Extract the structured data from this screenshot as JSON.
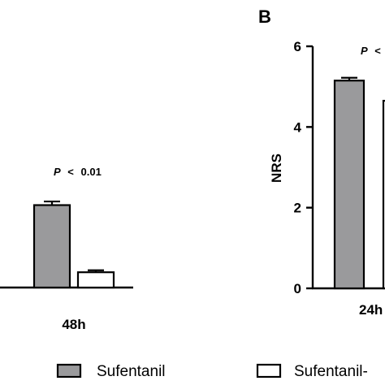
{
  "chart_data": [
    {
      "panel": "",
      "type": "bar",
      "categories": [
        "48h"
      ],
      "series": [
        {
          "name": "Sufentanil",
          "values": [
            2.05
          ],
          "errors": [
            0.09
          ],
          "color": "#9a9a9c"
        },
        {
          "name": "Sufentanil-",
          "values": [
            0.38
          ],
          "errors": [
            0.05
          ],
          "color": "#ffffff"
        }
      ],
      "annotations": [
        {
          "p": "P",
          "op": "<",
          "value": "0.01"
        }
      ],
      "ylabel": "",
      "ylim": [
        0,
        6
      ],
      "grid": false
    },
    {
      "panel": "B",
      "type": "bar",
      "categories": [
        "24h"
      ],
      "series": [
        {
          "name": "Sufentanil",
          "values": [
            5.15
          ],
          "errors": [
            0.07
          ],
          "color": "#9a9a9c"
        },
        {
          "name": "Sufentanil-",
          "values": [
            4.65
          ],
          "errors": [
            0.0
          ],
          "color": "#ffffff"
        }
      ],
      "annotations": [
        {
          "p": "P",
          "op": "<",
          "value": ""
        }
      ],
      "ylabel": "NRS",
      "yticks": [
        "0",
        "2",
        "4",
        "6"
      ],
      "ylim": [
        0,
        6
      ],
      "grid": false
    }
  ],
  "legend": {
    "position": "bottom",
    "items": [
      {
        "label": "Sufentanil",
        "fill": "#9a9a9c"
      },
      {
        "label": "Sufentanil-",
        "fill": "#ffffff"
      }
    ]
  }
}
